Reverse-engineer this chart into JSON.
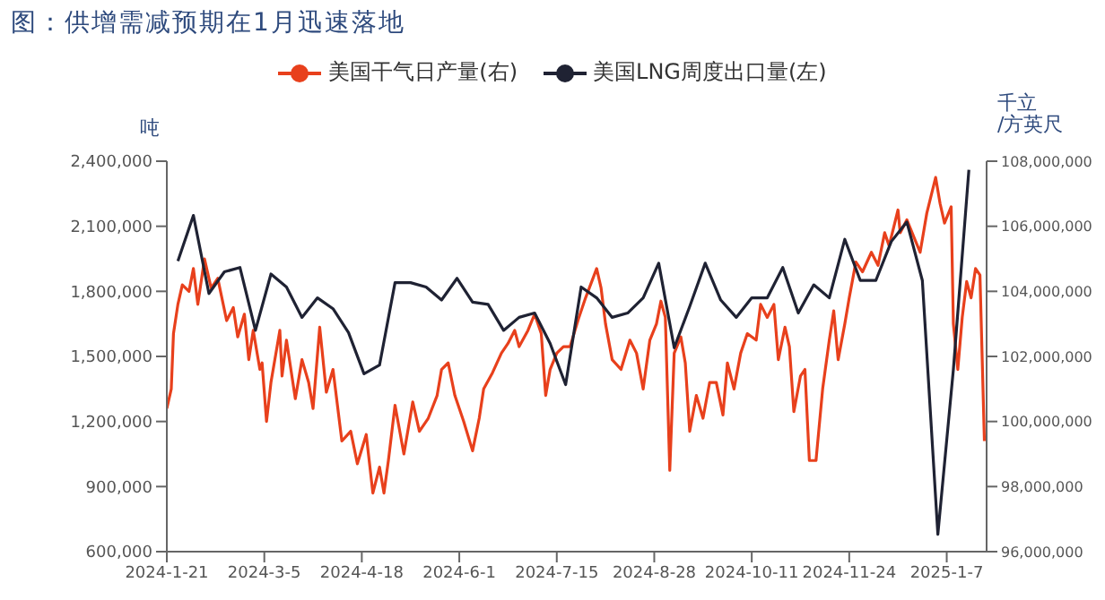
{
  "chart_data": {
    "type": "line",
    "title": "图：供增需减预期在1月迅速落地",
    "ylabel": "吨",
    "y2label": "千立\n/方英尺",
    "legend": "top",
    "xlim": [
      "2024-01-21",
      "2025-01-25"
    ],
    "xticks": [
      {
        "value": "2024-01-21",
        "label": "2024-1-21"
      },
      {
        "value": "2024-03-05",
        "label": "2024-3-5"
      },
      {
        "value": "2024-04-18",
        "label": "2024-4-18"
      },
      {
        "value": "2024-06-01",
        "label": "2024-6-1"
      },
      {
        "value": "2024-07-15",
        "label": "2024-7-15"
      },
      {
        "value": "2024-08-28",
        "label": "2024-8-28"
      },
      {
        "value": "2024-10-11",
        "label": "2024-10-11"
      },
      {
        "value": "2024-11-24",
        "label": "2024-11-24"
      },
      {
        "value": "2025-01-07",
        "label": "2025-1-7"
      }
    ],
    "ylim": [
      600000,
      2400000
    ],
    "yticks": [
      {
        "value": 600000,
        "label": "600,000"
      },
      {
        "value": 900000,
        "label": "900,000"
      },
      {
        "value": 1200000,
        "label": "1,200,000"
      },
      {
        "value": 1500000,
        "label": "1,500,000"
      },
      {
        "value": 1800000,
        "label": "1,800,000"
      },
      {
        "value": 2100000,
        "label": "2,100,000"
      },
      {
        "value": 2400000,
        "label": "2,400,000"
      }
    ],
    "y2lim": [
      96000000,
      108000000
    ],
    "y2ticks": [
      {
        "value": 96000000,
        "label": "96,000,000"
      },
      {
        "value": 98000000,
        "label": "98,000,000"
      },
      {
        "value": 100000000,
        "label": "100,000,000"
      },
      {
        "value": 102000000,
        "label": "102,000,000"
      },
      {
        "value": 104000000,
        "label": "104,000,000"
      },
      {
        "value": 106000000,
        "label": "106,000,000"
      },
      {
        "value": 108000000,
        "label": "108,000,000"
      }
    ],
    "series": [
      {
        "name": "美国干气日产量(右)",
        "color": "#e8401c",
        "axis": "y2",
        "x": [
          "2024-01-21",
          "2024-01-23",
          "2024-01-24",
          "2024-01-26",
          "2024-01-28",
          "2024-01-31",
          "2024-02-02",
          "2024-02-04",
          "2024-02-07",
          "2024-02-10",
          "2024-02-13",
          "2024-02-17",
          "2024-02-20",
          "2024-02-22",
          "2024-02-25",
          "2024-02-27",
          "2024-02-29",
          "2024-03-03",
          "2024-03-04",
          "2024-03-06",
          "2024-03-08",
          "2024-03-12",
          "2024-03-13",
          "2024-03-15",
          "2024-03-19",
          "2024-03-22",
          "2024-03-25",
          "2024-03-27",
          "2024-03-30",
          "2024-04-02",
          "2024-04-05",
          "2024-04-09",
          "2024-04-13",
          "2024-04-16",
          "2024-04-20",
          "2024-04-23",
          "2024-04-26",
          "2024-04-28",
          "2024-04-30",
          "2024-05-03",
          "2024-05-07",
          "2024-05-11",
          "2024-05-14",
          "2024-05-18",
          "2024-05-22",
          "2024-05-24",
          "2024-05-27",
          "2024-05-30",
          "2024-06-03",
          "2024-06-07",
          "2024-06-10",
          "2024-06-12",
          "2024-06-16",
          "2024-06-20",
          "2024-06-23",
          "2024-06-26",
          "2024-06-28",
          "2024-07-02",
          "2024-07-05",
          "2024-07-08",
          "2024-07-10",
          "2024-07-12",
          "2024-07-15",
          "2024-07-18",
          "2024-07-21",
          "2024-07-25",
          "2024-07-28",
          "2024-08-02",
          "2024-08-04",
          "2024-08-06",
          "2024-08-09",
          "2024-08-13",
          "2024-08-17",
          "2024-08-20",
          "2024-08-23",
          "2024-08-26",
          "2024-08-29",
          "2024-08-31",
          "2024-09-02",
          "2024-09-04",
          "2024-09-06",
          "2024-09-09",
          "2024-09-11",
          "2024-09-13",
          "2024-09-16",
          "2024-09-19",
          "2024-09-22",
          "2024-09-25",
          "2024-09-28",
          "2024-09-30",
          "2024-10-03",
          "2024-10-06",
          "2024-10-09",
          "2024-10-13",
          "2024-10-15",
          "2024-10-18",
          "2024-10-21",
          "2024-10-23",
          "2024-10-26",
          "2024-10-28",
          "2024-10-30",
          "2024-11-02",
          "2024-11-04",
          "2024-11-06",
          "2024-11-09",
          "2024-11-12",
          "2024-11-15",
          "2024-11-17",
          "2024-11-19",
          "2024-11-22",
          "2024-11-24",
          "2024-11-27",
          "2024-11-30",
          "2024-12-04",
          "2024-12-07",
          "2024-12-10",
          "2024-12-12",
          "2024-12-16",
          "2024-12-17",
          "2024-12-20",
          "2024-12-23",
          "2024-12-26",
          "2024-12-29",
          "2025-01-02",
          "2025-01-04",
          "2025-01-06",
          "2025-01-09",
          "2025-01-10",
          "2025-01-12",
          "2025-01-14",
          "2025-01-16",
          "2025-01-18",
          "2025-01-20",
          "2025-01-22",
          "2025-01-24"
        ],
        "values": [
          100400000,
          101000000,
          102700000,
          103600000,
          104200000,
          104000000,
          104700000,
          103600000,
          105000000,
          104100000,
          104400000,
          103100000,
          103500000,
          102600000,
          103300000,
          101900000,
          102800000,
          101600000,
          101800000,
          100000000,
          101200000,
          102800000,
          101400000,
          102500000,
          100700000,
          101900000,
          101200000,
          100400000,
          102900000,
          100900000,
          101600000,
          99400000,
          99700000,
          98700000,
          99600000,
          97800000,
          98600000,
          97800000,
          98800000,
          100500000,
          99000000,
          100600000,
          99700000,
          100100000,
          100800000,
          101600000,
          101800000,
          100800000,
          100000000,
          99100000,
          100100000,
          101000000,
          101500000,
          102100000,
          102400000,
          102800000,
          102300000,
          102800000,
          103300000,
          102700000,
          100800000,
          101600000,
          102100000,
          102300000,
          102300000,
          103200000,
          103800000,
          104700000,
          104100000,
          103000000,
          101900000,
          101600000,
          102500000,
          102100000,
          101000000,
          102500000,
          103000000,
          103700000,
          103200000,
          98500000,
          102100000,
          102600000,
          101800000,
          99700000,
          100800000,
          100100000,
          101200000,
          101200000,
          100200000,
          101800000,
          101000000,
          102100000,
          102700000,
          102500000,
          103600000,
          103200000,
          103600000,
          101900000,
          102900000,
          102300000,
          100300000,
          101400000,
          101600000,
          98800000,
          98800000,
          101000000,
          102500000,
          103400000,
          101900000,
          103000000,
          103800000,
          104900000,
          104600000,
          105200000,
          104800000,
          105800000,
          105400000,
          106500000,
          105800000,
          106200000,
          105700000,
          105200000,
          106400000,
          107500000,
          106700000,
          106100000,
          106600000,
          103000000,
          101600000,
          103200000,
          104300000,
          103800000,
          104700000,
          104500000,
          99400000
        ]
      },
      {
        "name": "美国LNG周度出口量(左)",
        "color": "#1f2233",
        "x": [
          "2024-01-26",
          "2024-02-02",
          "2024-02-09",
          "2024-02-16",
          "2024-02-23",
          "2024-03-01",
          "2024-03-08",
          "2024-03-15",
          "2024-03-22",
          "2024-03-29",
          "2024-04-05",
          "2024-04-12",
          "2024-04-19",
          "2024-04-26",
          "2024-05-03",
          "2024-05-10",
          "2024-05-17",
          "2024-05-24",
          "2024-05-31",
          "2024-06-07",
          "2024-06-14",
          "2024-06-21",
          "2024-06-28",
          "2024-07-05",
          "2024-07-12",
          "2024-07-19",
          "2024-07-26",
          "2024-08-02",
          "2024-08-09",
          "2024-08-16",
          "2024-08-23",
          "2024-08-30",
          "2024-09-06",
          "2024-09-13",
          "2024-09-20",
          "2024-09-27",
          "2024-10-04",
          "2024-10-11",
          "2024-10-18",
          "2024-10-25",
          "2024-11-01",
          "2024-11-08",
          "2024-11-15",
          "2024-11-22",
          "2024-11-29",
          "2024-12-06",
          "2024-12-13",
          "2024-12-20",
          "2024-12-27",
          "2025-01-03",
          "2025-01-10",
          "2025-01-17"
        ],
        "values": [
          1940000,
          2150000,
          1790000,
          1890000,
          1910000,
          1620000,
          1880000,
          1820000,
          1680000,
          1770000,
          1720000,
          1610000,
          1420000,
          1460000,
          1840000,
          1840000,
          1820000,
          1760000,
          1860000,
          1750000,
          1740000,
          1620000,
          1680000,
          1700000,
          1560000,
          1370000,
          1820000,
          1770000,
          1680000,
          1700000,
          1770000,
          1930000,
          1540000,
          1730000,
          1930000,
          1760000,
          1680000,
          1770000,
          1770000,
          1910000,
          1700000,
          1830000,
          1770000,
          2040000,
          1850000,
          1850000,
          2030000,
          2120000,
          1850000,
          680000,
          1440000,
          2360000
        ]
      }
    ]
  }
}
